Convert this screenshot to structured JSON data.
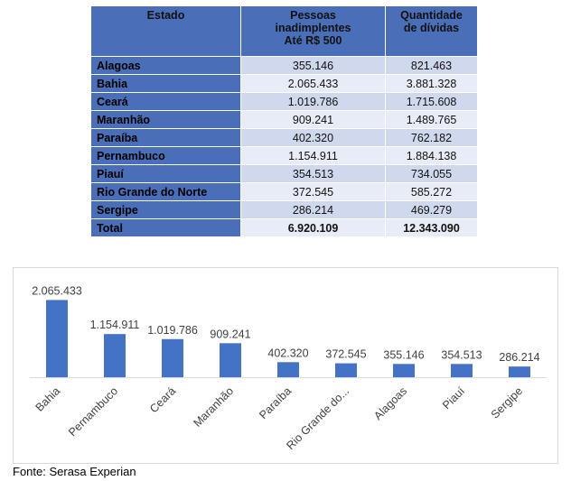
{
  "table": {
    "headers": [
      [
        "Estado"
      ],
      [
        "Pessoas",
        "inadimplentes",
        "Até R$ 500"
      ],
      [
        "Quantidade",
        "de dívidas"
      ]
    ],
    "rows": [
      {
        "state": "Alagoas",
        "people": "355.146",
        "debts": "821.463"
      },
      {
        "state": "Bahia",
        "people": "2.065.433",
        "debts": "3.881.328"
      },
      {
        "state": "Ceará",
        "people": "1.019.786",
        "debts": "1.715.608"
      },
      {
        "state": "Maranhão",
        "people": "909.241",
        "debts": "1.489.765"
      },
      {
        "state": "Paraíba",
        "people": "402.320",
        "debts": "762.182"
      },
      {
        "state": "Pernambuco",
        "people": "1.154.911",
        "debts": "1.884.138"
      },
      {
        "state": "Piauí",
        "people": "354.513",
        "debts": "734.055"
      },
      {
        "state": "Rio Grande do Norte",
        "people": "372.545",
        "debts": "585.272"
      },
      {
        "state": "Sergipe",
        "people": "286.214",
        "debts": "469.279"
      }
    ],
    "total": {
      "label": "Total",
      "people": "6.920.109",
      "debts": "12.343.090"
    }
  },
  "chart_data": {
    "type": "bar",
    "categories": [
      "Bahia",
      "Pernambuco",
      "Ceará",
      "Maranhão",
      "Paraíba",
      "Rio Grande do...",
      "Alagoas",
      "Piauí",
      "Sergipe"
    ],
    "values": [
      2065433,
      1154911,
      1019786,
      909241,
      402320,
      372545,
      355146,
      354513,
      286214
    ],
    "data_labels": [
      "2.065.433",
      "1.154.911",
      "1.019.786",
      "909.241",
      "402.320",
      "372.545",
      "355.146",
      "354.513",
      "286.214"
    ],
    "ylim": [
      0,
      2100000
    ],
    "grid": false,
    "legend": "none",
    "bar_color": "#4472c4"
  },
  "source": "Fonte: Serasa Experian"
}
